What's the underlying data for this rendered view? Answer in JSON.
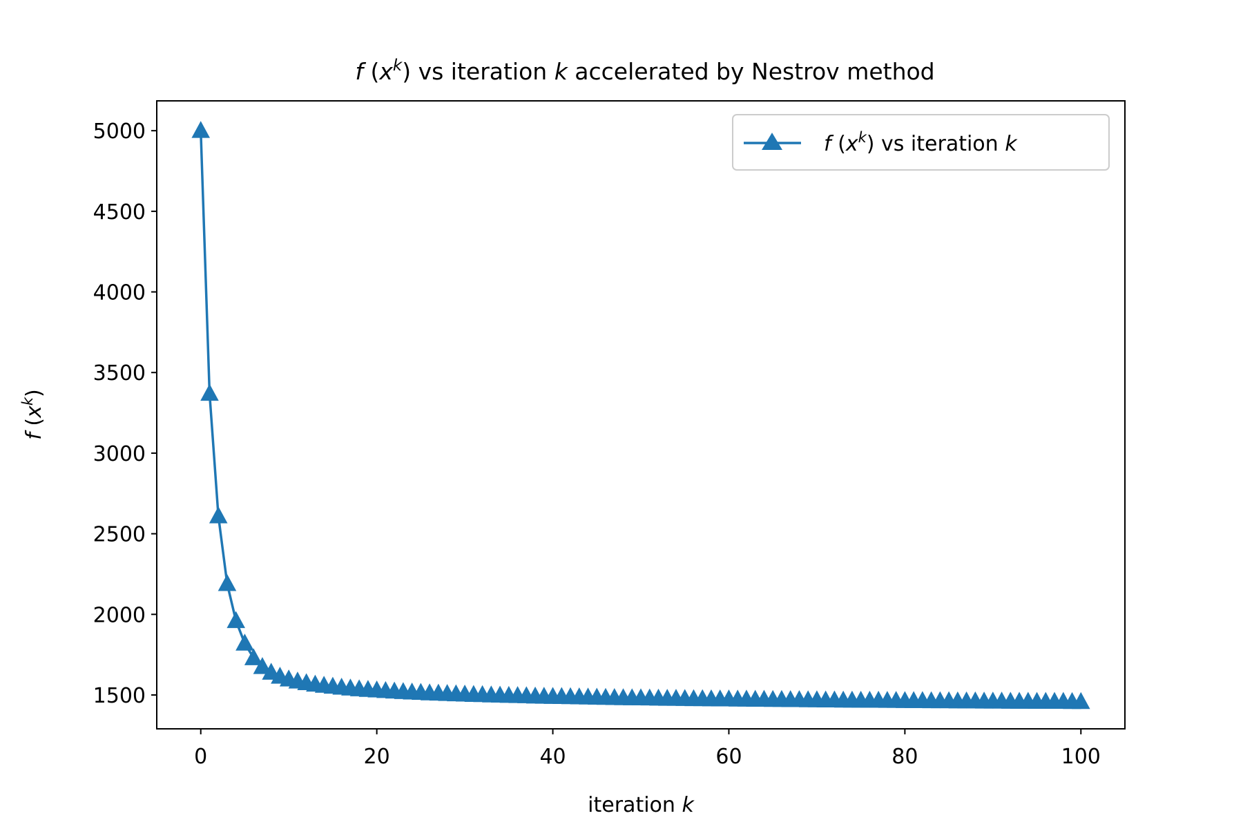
{
  "chart_data": {
    "type": "line",
    "title_parts": {
      "f": "f",
      "open": " (",
      "x": "x",
      "sup": "k",
      "close": ")",
      "middle": " vs iteration ",
      "k": "k",
      "rest": " accelerated by Nestrov method"
    },
    "xlabel_parts": {
      "text": "iteration ",
      "k": "k"
    },
    "ylabel_parts": {
      "f": "f",
      "open": " (",
      "x": "x",
      "sup": "k",
      "close": ")"
    },
    "xlim": [
      -5,
      105
    ],
    "ylim": [
      1290,
      5185
    ],
    "xticks": [
      0,
      20,
      40,
      60,
      80,
      100
    ],
    "xtick_labels": [
      "0",
      "20",
      "40",
      "60",
      "80",
      "100"
    ],
    "yticks": [
      1500,
      2000,
      2500,
      3000,
      3500,
      4000,
      4500,
      5000
    ],
    "ytick_labels": [
      "1500",
      "2000",
      "2500",
      "3000",
      "3500",
      "4000",
      "4500",
      "5000"
    ],
    "grid": false,
    "legend_position": "top-right",
    "series": [
      {
        "name_parts": {
          "f": "f",
          "open": " (",
          "x": "x",
          "sup": "k",
          "close": ")",
          "middle": " vs iteration ",
          "k": "k"
        },
        "color": "#1f77b4",
        "marker": "triangle-up",
        "x": [
          0,
          1,
          2,
          3,
          4,
          5,
          6,
          7,
          8,
          9,
          10,
          11,
          12,
          13,
          14,
          15,
          16,
          17,
          18,
          19,
          20,
          21,
          22,
          23,
          24,
          25,
          26,
          27,
          28,
          29,
          30,
          31,
          32,
          33,
          34,
          35,
          36,
          37,
          38,
          39,
          40,
          41,
          42,
          43,
          44,
          45,
          46,
          47,
          48,
          49,
          50,
          51,
          52,
          53,
          54,
          55,
          56,
          57,
          58,
          59,
          60,
          61,
          62,
          63,
          64,
          65,
          66,
          67,
          68,
          69,
          70,
          71,
          72,
          73,
          74,
          75,
          76,
          77,
          78,
          79,
          80,
          81,
          82,
          83,
          84,
          85,
          86,
          87,
          88,
          89,
          90,
          91,
          92,
          93,
          94,
          95,
          96,
          97,
          98,
          99,
          100
        ],
        "values": [
          5000,
          3370,
          2610,
          2190,
          1960,
          1820,
          1730,
          1675,
          1640,
          1615,
          1598,
          1585,
          1575,
          1566,
          1559,
          1553,
          1547,
          1542,
          1537,
          1533,
          1530,
          1526,
          1523,
          1520,
          1517,
          1515,
          1512,
          1510,
          1508,
          1506,
          1504,
          1502,
          1501,
          1499,
          1498,
          1496,
          1495,
          1494,
          1492,
          1491,
          1490,
          1489,
          1488,
          1487,
          1486,
          1485,
          1484,
          1483,
          1482,
          1481,
          1481,
          1480,
          1479,
          1478,
          1478,
          1477,
          1476,
          1476,
          1475,
          1474,
          1474,
          1473,
          1473,
          1472,
          1472,
          1471,
          1471,
          1470,
          1470,
          1469,
          1469,
          1468,
          1468,
          1467,
          1467,
          1466,
          1466,
          1466,
          1465,
          1465,
          1464,
          1464,
          1464,
          1463,
          1463,
          1463,
          1462,
          1462,
          1462,
          1461,
          1461,
          1461,
          1460,
          1460,
          1460,
          1459,
          1459,
          1459,
          1459,
          1458,
          1458
        ]
      }
    ]
  }
}
